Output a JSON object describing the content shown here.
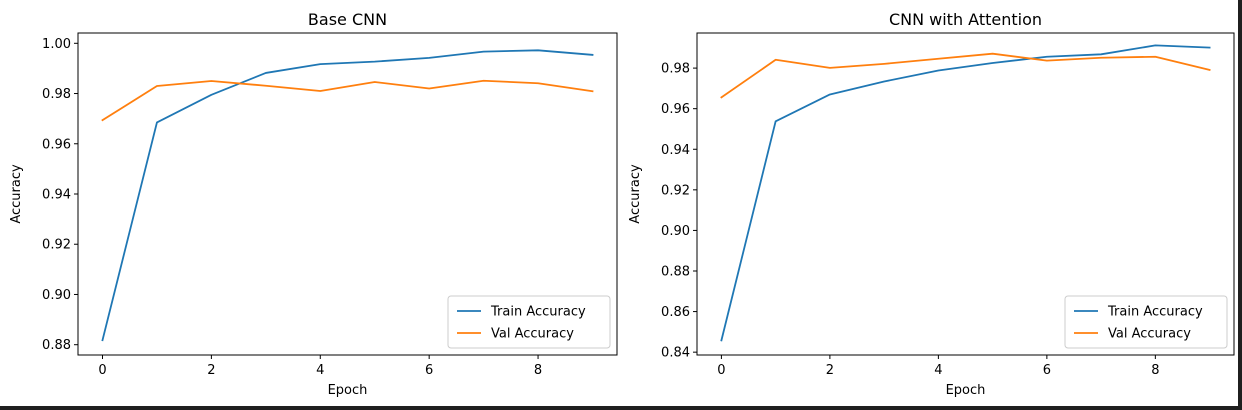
{
  "chart_data": [
    {
      "type": "line",
      "title": "Base CNN",
      "xlabel": "Epoch",
      "ylabel": "Accuracy",
      "xlim": [
        -0.45,
        9.45
      ],
      "ylim": [
        0.8759,
        1.0041
      ],
      "xticks": [
        0,
        2,
        4,
        6,
        8
      ],
      "xtick_labels": [
        "0",
        "2",
        "4",
        "6",
        "8"
      ],
      "yticks": [
        0.88,
        0.9,
        0.92,
        0.94,
        0.96,
        0.98,
        1.0
      ],
      "ytick_labels": [
        "0.88",
        "0.90",
        "0.92",
        "0.94",
        "0.96",
        "0.98",
        "1.00"
      ],
      "grid": false,
      "legend_position": "lower-right",
      "x": [
        0,
        1,
        2,
        3,
        4,
        5,
        6,
        7,
        8,
        9
      ],
      "series": [
        {
          "name": "Train Accuracy",
          "color": "#1f77b4",
          "values": [
            0.8818,
            0.9685,
            0.9795,
            0.9882,
            0.9917,
            0.9927,
            0.9942,
            0.9967,
            0.9972,
            0.9954
          ]
        },
        {
          "name": "Val Accuracy",
          "color": "#ff7f0e",
          "values": [
            0.9694,
            0.983,
            0.985,
            0.9831,
            0.981,
            0.9846,
            0.982,
            0.9851,
            0.9841,
            0.9809
          ]
        }
      ]
    },
    {
      "type": "line",
      "title": "CNN with Attention",
      "xlabel": "Epoch",
      "ylabel": "Accuracy",
      "xlim": [
        -0.45,
        9.45
      ],
      "ylim": [
        0.8386,
        0.9973
      ],
      "xticks": [
        0,
        2,
        4,
        6,
        8
      ],
      "xtick_labels": [
        "0",
        "2",
        "4",
        "6",
        "8"
      ],
      "yticks": [
        0.84,
        0.86,
        0.88,
        0.9,
        0.92,
        0.94,
        0.96,
        0.98
      ],
      "ytick_labels": [
        "0.84",
        "0.86",
        "0.88",
        "0.90",
        "0.92",
        "0.94",
        "0.96",
        "0.98"
      ],
      "grid": false,
      "legend_position": "lower-right",
      "x": [
        0,
        1,
        2,
        3,
        4,
        5,
        6,
        7,
        8,
        9
      ],
      "series": [
        {
          "name": "Train Accuracy",
          "color": "#1f77b4",
          "values": [
            0.8458,
            0.9538,
            0.967,
            0.9734,
            0.9788,
            0.9825,
            0.9856,
            0.9868,
            0.9912,
            0.9901
          ]
        },
        {
          "name": "Val Accuracy",
          "color": "#ff7f0e",
          "values": [
            0.9656,
            0.9841,
            0.9801,
            0.9821,
            0.9846,
            0.9871,
            0.9837,
            0.9851,
            0.9856,
            0.9791
          ]
        }
      ]
    }
  ]
}
